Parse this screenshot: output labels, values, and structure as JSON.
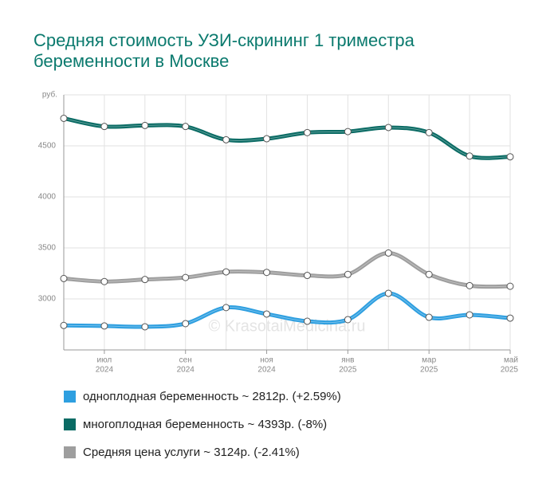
{
  "chart_data": {
    "type": "line",
    "title": [
      "Средняя стоимость УЗИ-скрининг 1 триместра",
      "беременности в Москве"
    ],
    "y_unit": "руб.",
    "watermark": "© KrasotaiMedicina.ru",
    "categories": [
      null,
      {
        "month": "июл",
        "year": "2024"
      },
      null,
      {
        "month": "сен",
        "year": "2024"
      },
      null,
      {
        "month": "ноя",
        "year": "2024"
      },
      null,
      {
        "month": "янв",
        "year": "2025"
      },
      null,
      {
        "month": "мар",
        "year": "2025"
      },
      null,
      {
        "month": "май",
        "year": "2025"
      }
    ],
    "series": [
      {
        "name": "многоплодная беременность ~ 4393р. (-8%)",
        "color": "#0a6b64",
        "values": [
          4770,
          4690,
          4700,
          4690,
          4560,
          4570,
          4630,
          4640,
          4680,
          4630,
          4400,
          4393
        ]
      },
      {
        "name": "Средняя цена услуги ~ 3124р. (-2.41%)",
        "color": "#9e9e9e",
        "values": [
          3200,
          3170,
          3190,
          3210,
          3265,
          3260,
          3230,
          3240,
          3450,
          3240,
          3130,
          3124
        ]
      },
      {
        "name": "одноплодная беременность ~ 2812р. (+2.59%)",
        "color": "#2e9fe0",
        "values": [
          2740,
          2735,
          2727,
          2758,
          2915,
          2852,
          2781,
          2797,
          3055,
          2820,
          2844,
          2812
        ]
      }
    ],
    "legend_order": [
      2,
      0,
      1
    ],
    "ylim": [
      2500,
      5000
    ],
    "yticks": [
      3000,
      3500,
      4000,
      4500
    ],
    "grid": true
  }
}
